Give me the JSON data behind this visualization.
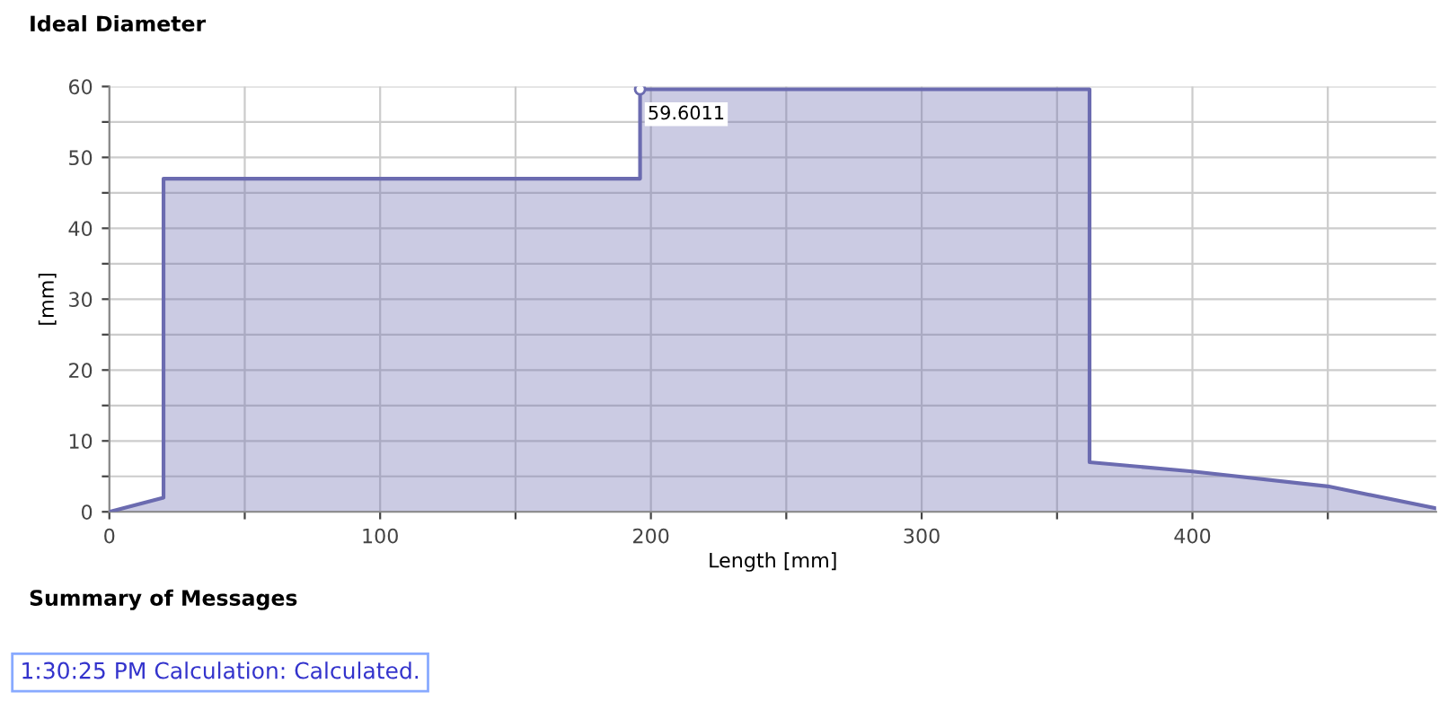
{
  "chart_data": {
    "type": "area",
    "title": "Ideal Diameter",
    "xlabel": "Length [mm]",
    "ylabel": "[mm]",
    "x": [
      0,
      20,
      20,
      196,
      196,
      362,
      362,
      400,
      450,
      490
    ],
    "series": [
      {
        "color": "#6b6bb0",
        "values": [
          0,
          2,
          47,
          47,
          59.6011,
          59.6011,
          7,
          5.7,
          3.6,
          0.5
        ]
      }
    ],
    "xlim": [
      0,
      490
    ],
    "ylim": [
      0,
      60
    ],
    "xticks": [
      0,
      {
        "value": 50,
        "label": null
      },
      100,
      {
        "value": 150,
        "label": null
      },
      200,
      {
        "value": 250,
        "label": null
      },
      300,
      {
        "value": 350,
        "label": null
      },
      400,
      {
        "value": 450,
        "label": null
      }
    ],
    "yticks": [
      0,
      {
        "value": 5,
        "label": null
      },
      10,
      {
        "value": 15,
        "label": null
      },
      20,
      {
        "value": 25,
        "label": null
      },
      30,
      {
        "value": 35,
        "label": null
      },
      40,
      {
        "value": 45,
        "label": null
      },
      50,
      {
        "value": 55,
        "label": null
      },
      60
    ],
    "grid": true,
    "legend": false,
    "annotations": [
      {
        "text": "59.6011",
        "x": 196,
        "y": 59.6011
      },
      "Summary of Messages",
      "1:30:25 PM Calculation: Calculated."
    ]
  }
}
